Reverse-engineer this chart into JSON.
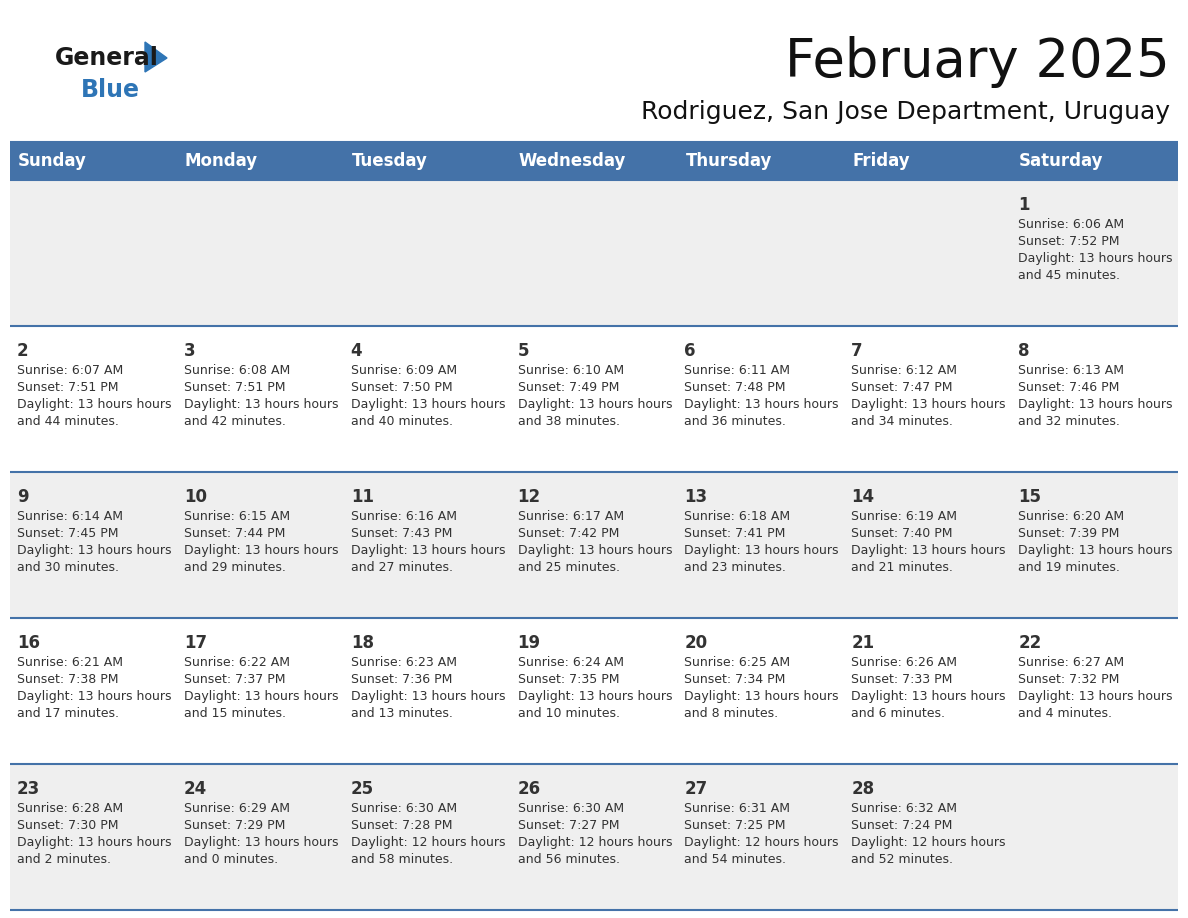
{
  "title": "February 2025",
  "subtitle": "Rodriguez, San Jose Department, Uruguay",
  "header_color": "#4472A8",
  "header_text_color": "#FFFFFF",
  "row_bg_odd": "#EFEFEF",
  "row_bg_even": "#FFFFFF",
  "border_color": "#4472A8",
  "day_text_color": "#333333",
  "day_num_color": "#333333",
  "day_headers": [
    "Sunday",
    "Monday",
    "Tuesday",
    "Wednesday",
    "Thursday",
    "Friday",
    "Saturday"
  ],
  "title_fontsize": 38,
  "subtitle_fontsize": 18,
  "header_fontsize": 12,
  "day_num_fontsize": 11,
  "info_fontsize": 9,
  "logo_color1": "#1a1a1a",
  "logo_color2": "#2E75B6",
  "triangle_color": "#2E75B6",
  "weeks": [
    [
      {
        "day": null
      },
      {
        "day": null
      },
      {
        "day": null
      },
      {
        "day": null
      },
      {
        "day": null
      },
      {
        "day": null
      },
      {
        "day": 1,
        "sunrise": "6:06 AM",
        "sunset": "7:52 PM",
        "daylight": "13 hours and 45 minutes."
      }
    ],
    [
      {
        "day": 2,
        "sunrise": "6:07 AM",
        "sunset": "7:51 PM",
        "daylight": "13 hours and 44 minutes."
      },
      {
        "day": 3,
        "sunrise": "6:08 AM",
        "sunset": "7:51 PM",
        "daylight": "13 hours and 42 minutes."
      },
      {
        "day": 4,
        "sunrise": "6:09 AM",
        "sunset": "7:50 PM",
        "daylight": "13 hours and 40 minutes."
      },
      {
        "day": 5,
        "sunrise": "6:10 AM",
        "sunset": "7:49 PM",
        "daylight": "13 hours and 38 minutes."
      },
      {
        "day": 6,
        "sunrise": "6:11 AM",
        "sunset": "7:48 PM",
        "daylight": "13 hours and 36 minutes."
      },
      {
        "day": 7,
        "sunrise": "6:12 AM",
        "sunset": "7:47 PM",
        "daylight": "13 hours and 34 minutes."
      },
      {
        "day": 8,
        "sunrise": "6:13 AM",
        "sunset": "7:46 PM",
        "daylight": "13 hours and 32 minutes."
      }
    ],
    [
      {
        "day": 9,
        "sunrise": "6:14 AM",
        "sunset": "7:45 PM",
        "daylight": "13 hours and 30 minutes."
      },
      {
        "day": 10,
        "sunrise": "6:15 AM",
        "sunset": "7:44 PM",
        "daylight": "13 hours and 29 minutes."
      },
      {
        "day": 11,
        "sunrise": "6:16 AM",
        "sunset": "7:43 PM",
        "daylight": "13 hours and 27 minutes."
      },
      {
        "day": 12,
        "sunrise": "6:17 AM",
        "sunset": "7:42 PM",
        "daylight": "13 hours and 25 minutes."
      },
      {
        "day": 13,
        "sunrise": "6:18 AM",
        "sunset": "7:41 PM",
        "daylight": "13 hours and 23 minutes."
      },
      {
        "day": 14,
        "sunrise": "6:19 AM",
        "sunset": "7:40 PM",
        "daylight": "13 hours and 21 minutes."
      },
      {
        "day": 15,
        "sunrise": "6:20 AM",
        "sunset": "7:39 PM",
        "daylight": "13 hours and 19 minutes."
      }
    ],
    [
      {
        "day": 16,
        "sunrise": "6:21 AM",
        "sunset": "7:38 PM",
        "daylight": "13 hours and 17 minutes."
      },
      {
        "day": 17,
        "sunrise": "6:22 AM",
        "sunset": "7:37 PM",
        "daylight": "13 hours and 15 minutes."
      },
      {
        "day": 18,
        "sunrise": "6:23 AM",
        "sunset": "7:36 PM",
        "daylight": "13 hours and 13 minutes."
      },
      {
        "day": 19,
        "sunrise": "6:24 AM",
        "sunset": "7:35 PM",
        "daylight": "13 hours and 10 minutes."
      },
      {
        "day": 20,
        "sunrise": "6:25 AM",
        "sunset": "7:34 PM",
        "daylight": "13 hours and 8 minutes."
      },
      {
        "day": 21,
        "sunrise": "6:26 AM",
        "sunset": "7:33 PM",
        "daylight": "13 hours and 6 minutes."
      },
      {
        "day": 22,
        "sunrise": "6:27 AM",
        "sunset": "7:32 PM",
        "daylight": "13 hours and 4 minutes."
      }
    ],
    [
      {
        "day": 23,
        "sunrise": "6:28 AM",
        "sunset": "7:30 PM",
        "daylight": "13 hours and 2 minutes."
      },
      {
        "day": 24,
        "sunrise": "6:29 AM",
        "sunset": "7:29 PM",
        "daylight": "13 hours and 0 minutes."
      },
      {
        "day": 25,
        "sunrise": "6:30 AM",
        "sunset": "7:28 PM",
        "daylight": "12 hours and 58 minutes."
      },
      {
        "day": 26,
        "sunrise": "6:30 AM",
        "sunset": "7:27 PM",
        "daylight": "12 hours and 56 minutes."
      },
      {
        "day": 27,
        "sunrise": "6:31 AM",
        "sunset": "7:25 PM",
        "daylight": "12 hours and 54 minutes."
      },
      {
        "day": 28,
        "sunrise": "6:32 AM",
        "sunset": "7:24 PM",
        "daylight": "12 hours and 52 minutes."
      },
      {
        "day": null
      }
    ]
  ]
}
